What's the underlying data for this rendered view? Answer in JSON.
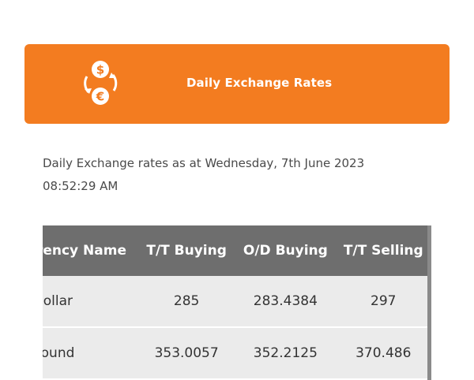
{
  "banner": {
    "title": "Daily Exchange Rates",
    "icon": "currency-exchange-icon"
  },
  "rates_info": "Daily Exchange rates as at Wednesday, 7th June 2023 08:52:29 AM",
  "table": {
    "headers": [
      "Currency Name",
      "T/T Buying",
      "O/D Buying",
      "T/T Selling"
    ],
    "rows": [
      [
        "US Dollar",
        "285",
        "283.4384",
        "297"
      ],
      [
        "UK Pound",
        "353.0057",
        "352.2125",
        "370.486"
      ]
    ]
  },
  "colors": {
    "brand_orange": "#f37c20",
    "header_gray": "#6e6e6e",
    "row_gray": "#ebebeb"
  }
}
